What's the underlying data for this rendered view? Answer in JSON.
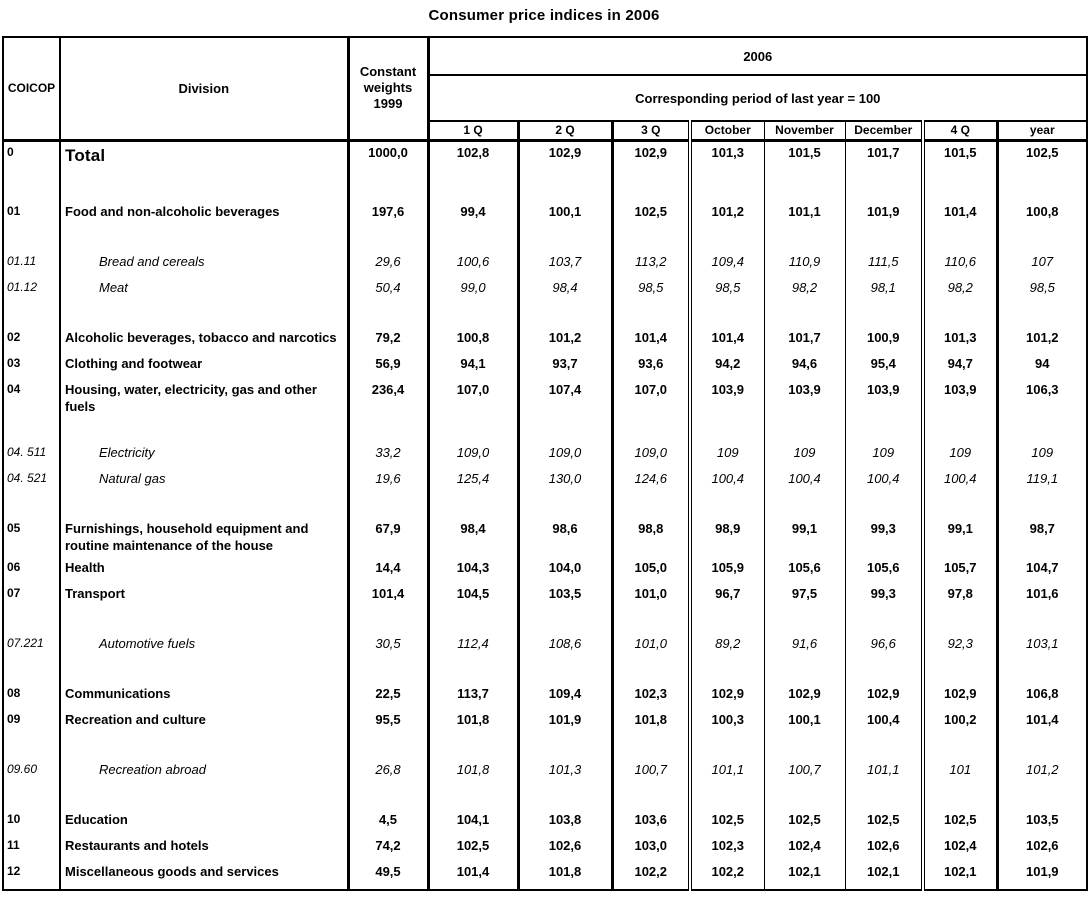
{
  "title": "Consumer price indices in 2006",
  "colors": {
    "text": "#000000",
    "border": "#000000",
    "background": "#ffffff"
  },
  "table": {
    "header": {
      "coicop": "COICOP",
      "division": "Division",
      "weights": "Constant weights 1999",
      "year_group": "2006",
      "subnote": "Corresponding period of last year = 100",
      "period_columns": [
        "1 Q",
        "2 Q",
        "3 Q",
        "October",
        "November",
        "December",
        "4 Q",
        "year"
      ]
    },
    "rows": [
      {
        "code": "0",
        "division": "Total",
        "weight": "1000,0",
        "level": "total",
        "gap_before": false,
        "values": [
          "102,8",
          "102,9",
          "102,9",
          "101,3",
          "101,5",
          "101,7",
          "101,5",
          "102,5"
        ]
      },
      {
        "code": "01",
        "division": "Food and non-alcoholic beverages",
        "weight": "197,6",
        "level": "division",
        "gap_before": true,
        "values": [
          "99,4",
          "100,1",
          "102,5",
          "101,2",
          "101,1",
          "101,9",
          "101,4",
          "100,8"
        ]
      },
      {
        "code": "01.11",
        "division": "Bread and cereals",
        "weight": "29,6",
        "level": "sub",
        "gap_before": true,
        "values": [
          "100,6",
          "103,7",
          "113,2",
          "109,4",
          "110,9",
          "111,5",
          "110,6",
          "107"
        ]
      },
      {
        "code": "01.12",
        "division": "Meat",
        "weight": "50,4",
        "level": "sub",
        "gap_before": false,
        "values": [
          "99,0",
          "98,4",
          "98,5",
          "98,5",
          "98,2",
          "98,1",
          "98,2",
          "98,5"
        ]
      },
      {
        "code": "02",
        "division": "Alcoholic beverages, tobacco and narcotics",
        "weight": "79,2",
        "level": "division",
        "gap_before": true,
        "values": [
          "100,8",
          "101,2",
          "101,4",
          "101,4",
          "101,7",
          "100,9",
          "101,3",
          "101,2"
        ]
      },
      {
        "code": "03",
        "division": "Clothing and footwear",
        "weight": "56,9",
        "level": "division",
        "gap_before": false,
        "values": [
          "94,1",
          "93,7",
          "93,6",
          "94,2",
          "94,6",
          "95,4",
          "94,7",
          "94"
        ]
      },
      {
        "code": "04",
        "division": "Housing, water, electricity, gas and other fuels",
        "weight": "236,4",
        "level": "division",
        "gap_before": false,
        "values": [
          "107,0",
          "107,4",
          "107,0",
          "103,9",
          "103,9",
          "103,9",
          "103,9",
          "106,3"
        ]
      },
      {
        "code": "04. 511",
        "division": "Electricity",
        "weight": "33,2",
        "level": "sub",
        "gap_before": true,
        "values": [
          "109,0",
          "109,0",
          "109,0",
          "109",
          "109",
          "109",
          "109",
          "109"
        ]
      },
      {
        "code": "04. 521",
        "division": "Natural gas",
        "weight": "19,6",
        "level": "sub",
        "gap_before": false,
        "values": [
          "125,4",
          "130,0",
          "124,6",
          "100,4",
          "100,4",
          "100,4",
          "100,4",
          "119,1"
        ]
      },
      {
        "code": "05",
        "division": "Furnishings, household equipment and routine maintenance of the house",
        "weight": "67,9",
        "level": "division",
        "gap_before": true,
        "values": [
          "98,4",
          "98,6",
          "98,8",
          "98,9",
          "99,1",
          "99,3",
          "99,1",
          "98,7"
        ]
      },
      {
        "code": "06",
        "division": "Health",
        "weight": "14,4",
        "level": "division",
        "gap_before": false,
        "values": [
          "104,3",
          "104,0",
          "105,0",
          "105,9",
          "105,6",
          "105,6",
          "105,7",
          "104,7"
        ]
      },
      {
        "code": "07",
        "division": "Transport",
        "weight": "101,4",
        "level": "division",
        "gap_before": false,
        "values": [
          "104,5",
          "103,5",
          "101,0",
          "96,7",
          "97,5",
          "99,3",
          "97,8",
          "101,6"
        ]
      },
      {
        "code": "07.221",
        "division": "Automotive fuels",
        "weight": "30,5",
        "level": "sub",
        "gap_before": true,
        "values": [
          "112,4",
          "108,6",
          "101,0",
          "89,2",
          "91,6",
          "96,6",
          "92,3",
          "103,1"
        ]
      },
      {
        "code": "08",
        "division": "Communications",
        "weight": "22,5",
        "level": "division",
        "gap_before": true,
        "values": [
          "113,7",
          "109,4",
          "102,3",
          "102,9",
          "102,9",
          "102,9",
          "102,9",
          "106,8"
        ]
      },
      {
        "code": "09",
        "division": "Recreation and culture",
        "weight": "95,5",
        "level": "division",
        "gap_before": false,
        "values": [
          "101,8",
          "101,9",
          "101,8",
          "100,3",
          "100,1",
          "100,4",
          "100,2",
          "101,4"
        ]
      },
      {
        "code": "09.60",
        "division": "Recreation abroad",
        "weight": "26,8",
        "level": "sub",
        "gap_before": true,
        "values": [
          "101,8",
          "101,3",
          "100,7",
          "101,1",
          "100,7",
          "101,1",
          "101",
          "101,2"
        ]
      },
      {
        "code": "10",
        "division": "Education",
        "weight": "4,5",
        "level": "division",
        "gap_before": true,
        "values": [
          "104,1",
          "103,8",
          "103,6",
          "102,5",
          "102,5",
          "102,5",
          "102,5",
          "103,5"
        ]
      },
      {
        "code": "11",
        "division": "Restaurants and hotels",
        "weight": "74,2",
        "level": "division",
        "gap_before": false,
        "values": [
          "102,5",
          "102,6",
          "103,0",
          "102,3",
          "102,4",
          "102,6",
          "102,4",
          "102,6"
        ]
      },
      {
        "code": "12",
        "division": "Miscellaneous goods and services",
        "weight": "49,5",
        "level": "division",
        "gap_before": false,
        "values": [
          "101,4",
          "101,8",
          "102,2",
          "102,2",
          "102,1",
          "102,1",
          "102,1",
          "101,9"
        ]
      }
    ]
  }
}
